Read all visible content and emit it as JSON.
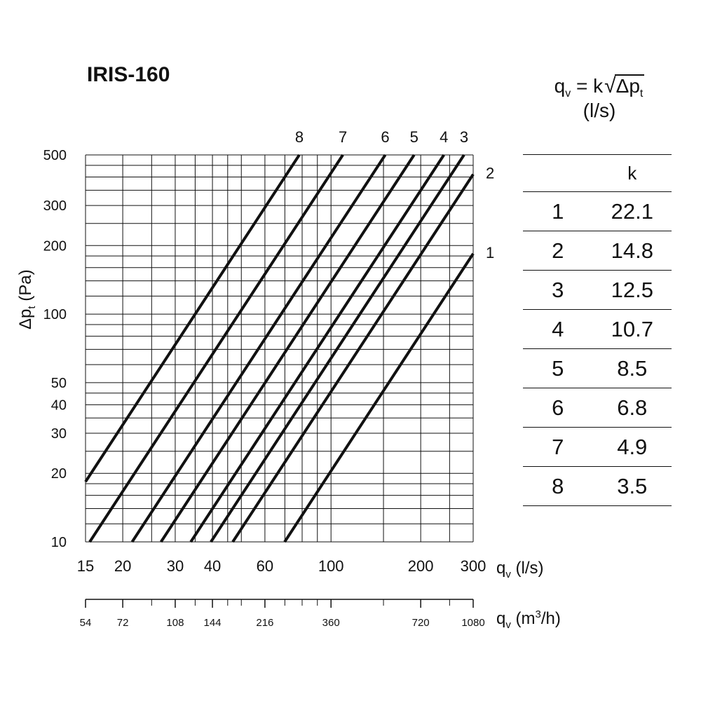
{
  "title": "IRIS-160",
  "formula": {
    "lhs": "q",
    "lhs_sub": "v",
    "eq": "= k",
    "rad": "√",
    "rad_body": "Δp",
    "rad_sub": "t",
    "unit": "(l/s)"
  },
  "k_table": {
    "header": "k",
    "rows": [
      {
        "id": "1",
        "k": "22.1"
      },
      {
        "id": "2",
        "k": "14.8"
      },
      {
        "id": "3",
        "k": "12.5"
      },
      {
        "id": "4",
        "k": "10.7"
      },
      {
        "id": "5",
        "k": "8.5"
      },
      {
        "id": "6",
        "k": "6.8"
      },
      {
        "id": "7",
        "k": "4.9"
      },
      {
        "id": "8",
        "k": "3.5"
      }
    ]
  },
  "chart_data": {
    "type": "line",
    "x_scale": "log",
    "y_scale": "log",
    "xlim": [
      15,
      300
    ],
    "ylim": [
      10,
      500
    ],
    "grid": true,
    "xlabel": {
      "main": "q",
      "sub": "v",
      "unit": " (l/s)"
    },
    "ylabel": {
      "main": "Δp",
      "sub": "t",
      "unit": " (Pa)"
    },
    "x_ticks": [
      15,
      20,
      30,
      40,
      60,
      100,
      200,
      300
    ],
    "x_gridlines": [
      15,
      20,
      25,
      30,
      35,
      40,
      45,
      50,
      60,
      70,
      80,
      90,
      100,
      150,
      200,
      250,
      300
    ],
    "y_ticks": [
      10,
      20,
      30,
      40,
      50,
      100,
      200,
      300,
      500
    ],
    "y_gridlines": [
      10,
      12,
      14,
      16,
      18,
      20,
      25,
      30,
      35,
      40,
      45,
      50,
      60,
      70,
      80,
      90,
      100,
      120,
      140,
      160,
      180,
      200,
      250,
      300,
      350,
      400,
      450,
      500
    ],
    "secondary_axis": {
      "label": {
        "main": "q",
        "sub": "v",
        "unit": " (m",
        "sup": "3",
        "unit_end": "/h)"
      },
      "ticks": [
        54,
        72,
        108,
        144,
        216,
        360,
        720,
        1080
      ],
      "minor_ticks": [
        90,
        126,
        162,
        180,
        252,
        288,
        324,
        540,
        900
      ]
    },
    "series": [
      {
        "name": "1",
        "k": 22.1
      },
      {
        "name": "2",
        "k": 14.8
      },
      {
        "name": "3",
        "k": 12.5
      },
      {
        "name": "4",
        "k": 10.7
      },
      {
        "name": "5",
        "k": 8.5
      },
      {
        "name": "6",
        "k": 6.8
      },
      {
        "name": "7",
        "k": 4.9
      },
      {
        "name": "8",
        "k": 3.5
      }
    ]
  }
}
